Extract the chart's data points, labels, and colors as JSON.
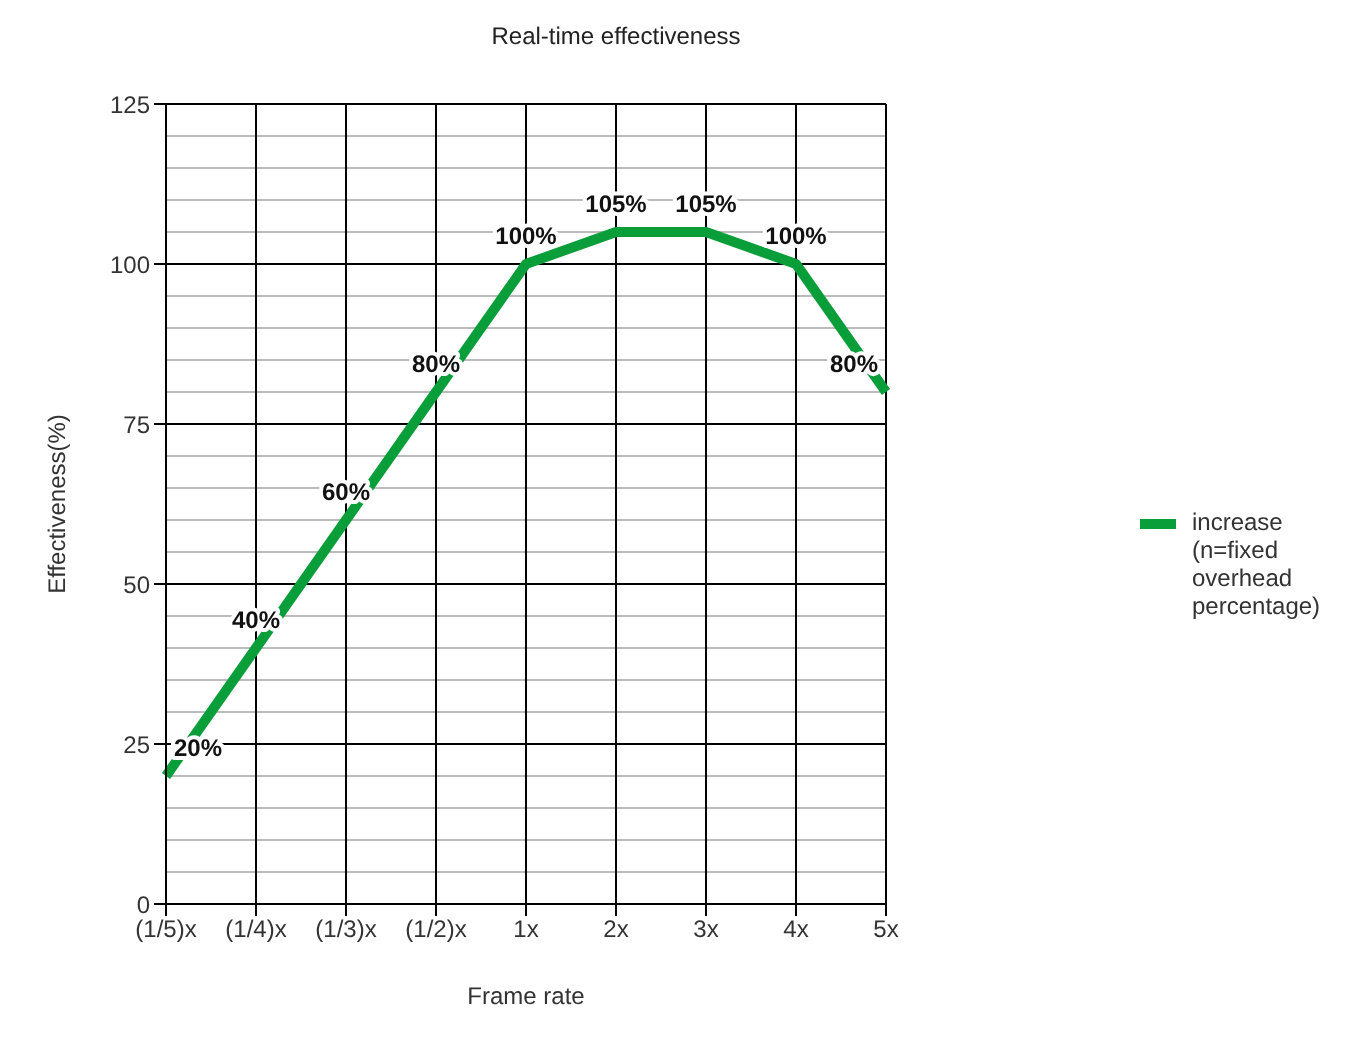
{
  "chart_data": {
    "type": "line",
    "title": "Real-time effectiveness",
    "xlabel": "Frame rate",
    "ylabel": "Effectiveness(%)",
    "categories": [
      "(1/5)x",
      "(1/4)x",
      "(1/3)x",
      "(1/2)x",
      "1x",
      "2x",
      "3x",
      "4x",
      "5x"
    ],
    "series": [
      {
        "name": "increase (n=fixed overhead percentage)",
        "color": "#0a9e3a",
        "values": [
          20,
          40,
          60,
          80,
          100,
          105,
          105,
          100,
          80
        ],
        "value_labels": [
          "20%",
          "40%",
          "60%",
          "80%",
          "100%",
          "105%",
          "105%",
          "100%",
          "80%"
        ]
      }
    ],
    "ylim": [
      0,
      125
    ],
    "yticks": [
      0,
      25,
      50,
      75,
      100,
      125
    ],
    "grid": true,
    "legend": "right",
    "marker": "none",
    "line_style": "solid"
  }
}
